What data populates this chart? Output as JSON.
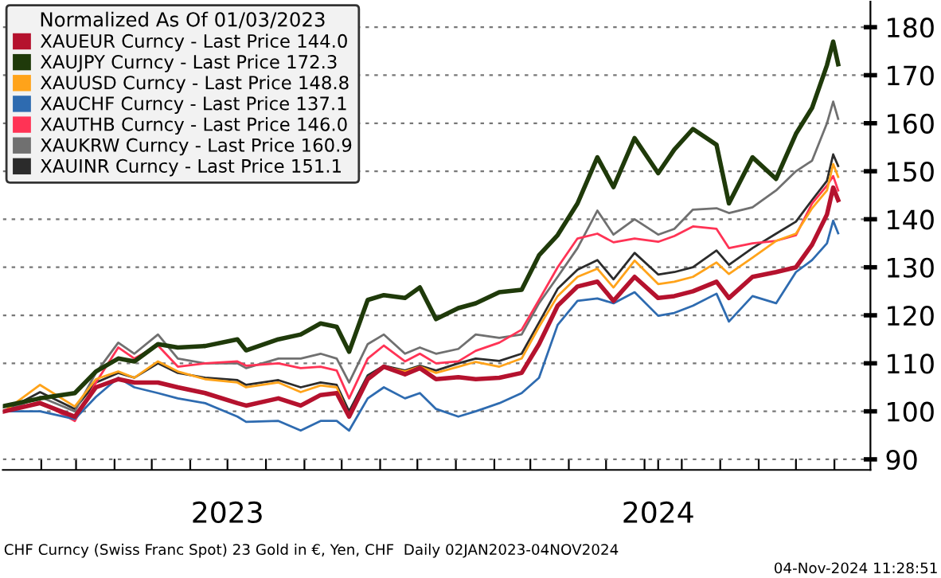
{
  "chart_data": {
    "type": "line",
    "legend_title": "Normalized As Of 01/03/2023",
    "legend": "top left",
    "grid": "y",
    "line_style": "solid",
    "marker": "none",
    "x": [
      "2023-01-02",
      "2023-01-31",
      "2023-02-28",
      "2023-03-17",
      "2023-04-04",
      "2023-04-17",
      "2023-05-06",
      "2023-05-22",
      "2023-06-13",
      "2023-07-09",
      "2023-07-16",
      "2023-08-11",
      "2023-08-29",
      "2023-09-14",
      "2023-09-27",
      "2023-10-07",
      "2023-10-22",
      "2023-11-04",
      "2023-11-21",
      "2023-12-03",
      "2023-12-16",
      "2024-01-03",
      "2024-01-17",
      "2024-02-05",
      "2024-02-23",
      "2024-03-08",
      "2024-03-23",
      "2024-04-08",
      "2024-04-24",
      "2024-05-07",
      "2024-05-24",
      "2024-06-12",
      "2024-06-25",
      "2024-07-10",
      "2024-07-29",
      "2024-08-08",
      "2024-08-27",
      "2024-09-15",
      "2024-10-01",
      "2024-10-14",
      "2024-10-26",
      "2024-10-31",
      "2024-11-04"
    ],
    "series": [
      {
        "name": "XAUEUR Curncy - Last Price 144.0",
        "color": "#b5122e",
        "values": [
          100,
          101.7,
          98.9,
          105,
          106.7,
          106,
          106,
          105,
          103.8,
          101.7,
          101.2,
          102.7,
          101.2,
          103.4,
          103.8,
          98.9,
          106.7,
          109.3,
          107.7,
          109,
          106.7,
          107.1,
          106.7,
          107,
          108,
          114,
          122,
          126,
          127,
          123,
          128,
          123.6,
          124,
          125,
          127,
          123.6,
          128,
          129,
          130,
          134.7,
          141,
          146.6,
          144.0
        ]
      },
      {
        "name": "XAUJPY Curncy - Last Price 172.3",
        "color": "#1f3a0a",
        "values": [
          101.1,
          102.7,
          103.8,
          108.3,
          111,
          110.4,
          114,
          113.3,
          113.6,
          115,
          112.7,
          115,
          116,
          118.3,
          117.6,
          112.4,
          123.2,
          124.2,
          123.6,
          125.8,
          119.2,
          121.5,
          122.5,
          124.8,
          125.3,
          132.5,
          136.7,
          143.3,
          152.9,
          146.7,
          156.9,
          149.6,
          154.5,
          158.8,
          155.5,
          143.3,
          152.9,
          148.4,
          157.8,
          163.2,
          172.1,
          177,
          172.3
        ]
      },
      {
        "name": "XAUUSD Curncy - Last Price 148.8",
        "color": "#ffa31a",
        "values": [
          100,
          105.5,
          101,
          106.7,
          108.3,
          107,
          110.4,
          108.3,
          106.7,
          106,
          105,
          106,
          104,
          105.4,
          105,
          99,
          107,
          109.3,
          108.3,
          109.3,
          108,
          109.3,
          110.3,
          109.3,
          111,
          117.6,
          124,
          128,
          129.7,
          125.8,
          131.4,
          126.5,
          127,
          128,
          131,
          128.6,
          132,
          135.5,
          137,
          142.3,
          146,
          151.5,
          148.8
        ]
      },
      {
        "name": "XAUCHF Curncy - Last Price 137.1",
        "color": "#2e6bb0",
        "values": [
          100,
          100,
          98.4,
          103,
          107,
          105,
          103.8,
          102.7,
          101.7,
          98.9,
          97.8,
          98,
          96,
          98,
          98,
          96,
          102.7,
          105,
          102.7,
          103.8,
          100.5,
          98.9,
          100,
          101.7,
          103.8,
          107,
          118,
          123,
          123.5,
          122.5,
          124.8,
          119.9,
          120.5,
          122,
          124.5,
          118.7,
          124,
          122.5,
          129,
          131.5,
          135,
          139.7,
          137.1
        ]
      },
      {
        "name": "XAUTHB Curncy - Last Price 146.0",
        "color": "#ff3355",
        "values": [
          100,
          102,
          98,
          106,
          113.3,
          111,
          113.7,
          109.3,
          110,
          110.4,
          109.5,
          110,
          109,
          109.3,
          108.5,
          102.7,
          111,
          113.7,
          110.4,
          112,
          110,
          110.4,
          112.6,
          114.3,
          117,
          123.2,
          130,
          136,
          137,
          135.2,
          136,
          135.3,
          136.5,
          138.5,
          138,
          134,
          135,
          135.5,
          136.7,
          143.3,
          147,
          149,
          146.0
        ]
      },
      {
        "name": "XAUKRW Curncy - Last Price 160.9",
        "color": "#707070",
        "values": [
          100,
          103,
          100,
          108,
          114.3,
          112,
          116,
          111,
          110,
          110,
          109,
          111,
          111,
          112,
          111,
          106,
          114,
          116,
          112,
          113.3,
          112,
          113,
          116,
          115.3,
          116,
          122.5,
          128,
          134,
          141.8,
          136.8,
          140,
          136.8,
          138,
          142,
          142.3,
          141.3,
          142.5,
          146,
          150,
          152.2,
          160,
          164.5,
          160.9
        ]
      },
      {
        "name": "XAUINR Curncy - Last Price 151.1",
        "color": "#2b2b2b",
        "values": [
          100,
          104,
          100.5,
          106,
          108,
          107,
          110,
          108,
          107,
          106.5,
          105.5,
          106.5,
          105,
          106,
          105.5,
          100,
          107.5,
          109.5,
          108.5,
          109.5,
          108.5,
          110,
          111,
          110.5,
          112,
          118.5,
          125.5,
          129.5,
          131.5,
          127.5,
          133,
          128.5,
          129,
          130,
          133.5,
          130.5,
          134,
          137,
          139.5,
          144,
          148,
          153.5,
          151.1
        ]
      }
    ],
    "xlim": [
      "2023-01-01",
      "2024-11-30"
    ],
    "xticks": [
      {
        "value": "2023-02-01",
        "label": null
      },
      {
        "value": "2023-03-01",
        "label": null
      },
      {
        "value": "2023-04-01",
        "label": null
      },
      {
        "value": "2023-05-01",
        "label": null
      },
      {
        "value": "2023-06-01",
        "label": null
      },
      {
        "value": "2023-07-01",
        "label": "2023"
      },
      {
        "value": "2023-08-01",
        "label": null
      },
      {
        "value": "2023-09-01",
        "label": null
      },
      {
        "value": "2023-10-01",
        "label": null
      },
      {
        "value": "2023-11-01",
        "label": null
      },
      {
        "value": "2023-12-01",
        "label": null
      },
      {
        "value": "2024-01-01",
        "label": null
      },
      {
        "value": "2024-02-01",
        "label": null
      },
      {
        "value": "2024-03-01",
        "label": null
      },
      {
        "value": "2024-04-01",
        "label": null
      },
      {
        "value": "2024-05-01",
        "label": null
      },
      {
        "value": "2024-06-01",
        "label": null
      },
      {
        "value": "2024-06-12",
        "label": "2024"
      },
      {
        "value": "2024-07-01",
        "label": null
      },
      {
        "value": "2024-08-01",
        "label": null
      },
      {
        "value": "2024-09-01",
        "label": null
      },
      {
        "value": "2024-10-01",
        "label": null
      },
      {
        "value": "2024-11-01",
        "label": null
      }
    ],
    "ylim": [
      87.8,
      185.3
    ],
    "yticks": [
      90,
      100,
      110,
      120,
      130,
      140,
      150,
      160,
      170,
      180
    ],
    "annotations": [
      "CHF Curncy (Swiss Franc Spot) 23 Gold in €, Yen, CHF  Daily 02JAN2023-04NOV2024",
      "04-Nov-2024 11:28:51"
    ]
  }
}
